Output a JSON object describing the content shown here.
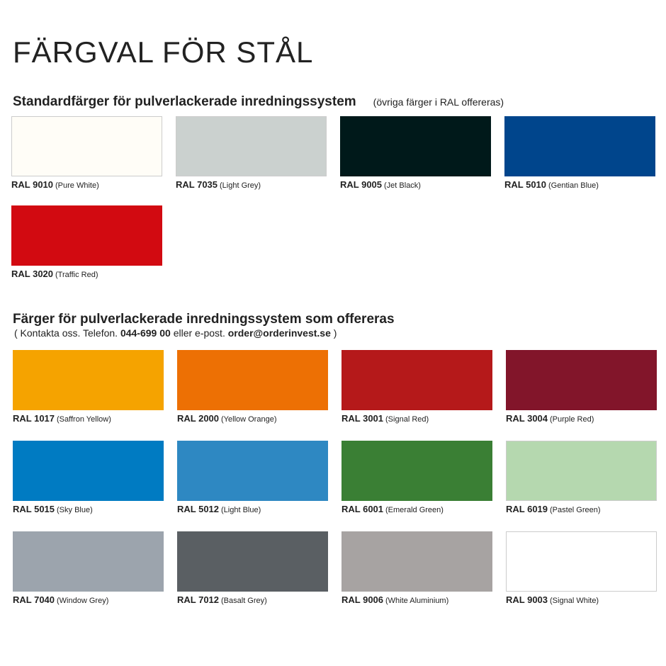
{
  "title": "FÄRGVAL FÖR STÅL",
  "standard": {
    "heading": "Standardfärger för pulverlackerade inredningssystem",
    "note": "(övriga färger i RAL offereras)",
    "colors": [
      {
        "code": "RAL 9010",
        "name": "(Pure White)",
        "hex": "#FFFDF7",
        "light": true
      },
      {
        "code": "RAL 7035",
        "name": "(Light Grey)",
        "hex": "#CBD1CF",
        "light": true
      },
      {
        "code": "RAL 9005",
        "name": "(Jet Black)",
        "hex": "#00191A"
      },
      {
        "code": "RAL 5010",
        "name": "(Gentian Blue)",
        "hex": "#00458C"
      },
      {
        "code": "RAL 3020",
        "name": "(Traffic Red)",
        "hex": "#D20A11"
      }
    ]
  },
  "offered": {
    "heading": "Färger för pulverlackerade inredningssystem som offereras",
    "contact_prefix": "( Kontakta oss. Telefon.",
    "phone": "044-699 00",
    "contact_mid": "eller e-post.",
    "email": "order@orderinvest.se",
    "contact_suffix": ")",
    "colors": [
      {
        "code": "RAL 1017",
        "name": "(Saffron Yellow)",
        "hex": "#F5A300"
      },
      {
        "code": "RAL 2000",
        "name": "(Yellow Orange)",
        "hex": "#ED7004"
      },
      {
        "code": "RAL 3001",
        "name": "(Signal Red)",
        "hex": "#B5191A"
      },
      {
        "code": "RAL 3004",
        "name": "(Purple Red)",
        "hex": "#82152A"
      },
      {
        "code": "RAL 5015",
        "name": "(Sky Blue)",
        "hex": "#007BC2"
      },
      {
        "code": "RAL 5012",
        "name": "(Light Blue)",
        "hex": "#2E88C2"
      },
      {
        "code": "RAL 6001",
        "name": "(Emerald Green)",
        "hex": "#3A7F34"
      },
      {
        "code": "RAL 6019",
        "name": "(Pastel Green)",
        "hex": "#B5D8AF",
        "light": true
      },
      {
        "code": "RAL 7040",
        "name": "(Window Grey)",
        "hex": "#9CA4AD"
      },
      {
        "code": "RAL 7012",
        "name": "(Basalt Grey)",
        "hex": "#5A5F63"
      },
      {
        "code": "RAL 9006",
        "name": "(White Aluminium)",
        "hex": "#A7A3A2"
      },
      {
        "code": "RAL 9003",
        "name": "(Signal White)",
        "hex": "#FFFFFF",
        "light": true
      }
    ]
  }
}
